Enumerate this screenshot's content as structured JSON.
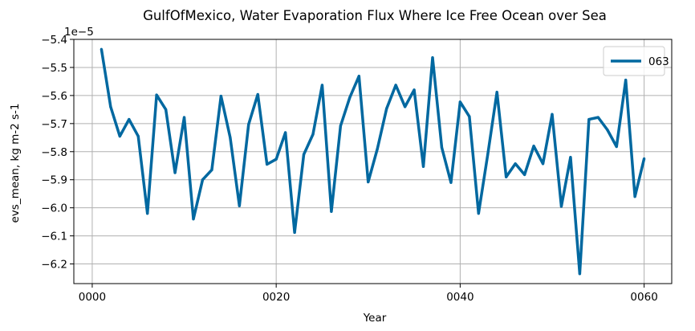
{
  "chart_data": {
    "type": "line",
    "title": "GulfOfMexico, Water Evaporation Flux Where Ice Free Ocean over Sea",
    "xlabel": "Year",
    "ylabel": "evs_mean, kg m-2 s-1",
    "offset_label": "1e−5",
    "xlim": [
      -2,
      63
    ],
    "ylim": [
      -6.27,
      -5.4
    ],
    "x_ticks": [
      0,
      20,
      40,
      60
    ],
    "x_tick_labels": [
      "0000",
      "0020",
      "0040",
      "0060"
    ],
    "y_ticks": [
      -5.4,
      -5.5,
      -5.6,
      -5.7,
      -5.8,
      -5.9,
      -6.0,
      -6.1,
      -6.2
    ],
    "y_tick_labels": [
      "−5.4",
      "−5.5",
      "−5.6",
      "−5.7",
      "−5.8",
      "−5.9",
      "−6.0",
      "−6.1",
      "−6.2"
    ],
    "grid": true,
    "legend_position": "top-right",
    "series": [
      {
        "name": "063",
        "color": "#0068a0",
        "x": [
          1,
          2,
          3,
          4,
          5,
          6,
          7,
          8,
          9,
          10,
          11,
          12,
          13,
          14,
          15,
          16,
          17,
          18,
          19,
          20,
          21,
          22,
          23,
          24,
          25,
          26,
          27,
          28,
          29,
          30,
          31,
          32,
          33,
          34,
          35,
          36,
          37,
          38,
          39,
          40,
          41,
          42,
          43,
          44,
          45,
          46,
          47,
          48,
          49,
          50,
          51,
          52,
          53,
          54,
          55,
          56,
          57,
          58,
          59,
          60
        ],
        "values": [
          -5.435,
          -5.64,
          -5.745,
          -5.685,
          -5.745,
          -6.02,
          -5.598,
          -5.65,
          -5.875,
          -5.678,
          -6.04,
          -5.9,
          -5.865,
          -5.602,
          -5.75,
          -5.993,
          -5.703,
          -5.596,
          -5.845,
          -5.827,
          -5.732,
          -6.088,
          -5.81,
          -5.738,
          -5.563,
          -6.013,
          -5.708,
          -5.607,
          -5.531,
          -5.908,
          -5.79,
          -5.647,
          -5.563,
          -5.64,
          -5.58,
          -5.853,
          -5.465,
          -5.785,
          -5.91,
          -5.623,
          -5.675,
          -6.02,
          -5.81,
          -5.588,
          -5.89,
          -5.843,
          -5.882,
          -5.78,
          -5.843,
          -5.667,
          -5.995,
          -5.82,
          -6.235,
          -5.685,
          -5.678,
          -5.722,
          -5.782,
          -5.545,
          -5.96,
          -5.825
        ]
      }
    ]
  }
}
